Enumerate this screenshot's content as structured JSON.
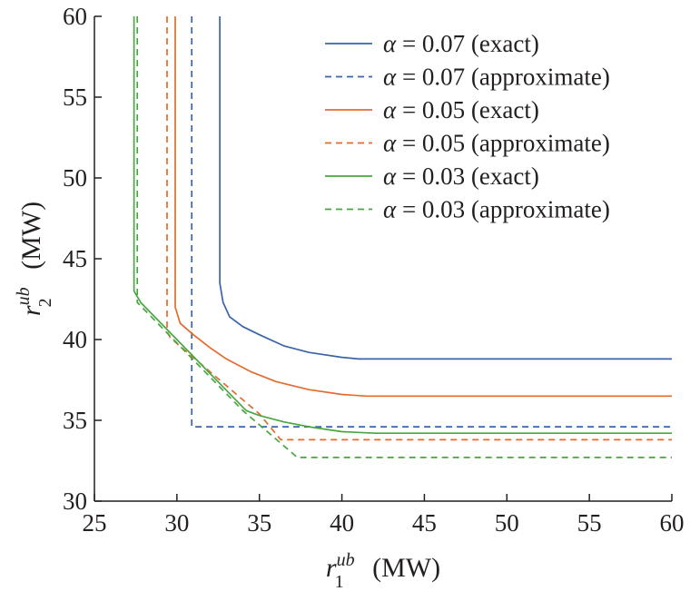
{
  "chart_data": {
    "type": "line",
    "xlabel": {
      "base": "r",
      "sub": "1",
      "sup": "ub",
      "unit": "(MW)"
    },
    "ylabel": {
      "base": "r",
      "sub": "2",
      "sup": "ub",
      "unit": "(MW)"
    },
    "xlim": [
      25,
      60
    ],
    "ylim": [
      30,
      60
    ],
    "xticks": [
      25,
      30,
      35,
      40,
      45,
      50,
      55,
      60
    ],
    "yticks": [
      30,
      35,
      40,
      45,
      50,
      55,
      60
    ],
    "legend_position": "top-right",
    "series": [
      {
        "name": "α = 0.07 (exact)",
        "color": "#3a64a8",
        "dash": "solid",
        "points": [
          [
            32.6,
            60
          ],
          [
            32.6,
            43.5
          ],
          [
            32.8,
            42.3
          ],
          [
            33.2,
            41.4
          ],
          [
            34.0,
            40.8
          ],
          [
            35.0,
            40.3
          ],
          [
            36.5,
            39.6
          ],
          [
            38.0,
            39.2
          ],
          [
            40.0,
            38.9
          ],
          [
            41.0,
            38.8
          ],
          [
            60,
            38.8
          ]
        ]
      },
      {
        "name": "α = 0.07 (approximate)",
        "color": "#3a64a8",
        "dash": "dashed",
        "points": [
          [
            30.9,
            60
          ],
          [
            30.9,
            34.6
          ],
          [
            60,
            34.6
          ]
        ]
      },
      {
        "name": "α = 0.05 (exact)",
        "color": "#e36b2e",
        "dash": "solid",
        "points": [
          [
            29.9,
            60
          ],
          [
            29.9,
            42.0
          ],
          [
            30.2,
            41.0
          ],
          [
            31.0,
            40.3
          ],
          [
            32.0,
            39.5
          ],
          [
            33.0,
            38.8
          ],
          [
            34.5,
            38.0
          ],
          [
            36.0,
            37.4
          ],
          [
            38.0,
            36.9
          ],
          [
            40.0,
            36.6
          ],
          [
            41.5,
            36.5
          ],
          [
            60,
            36.5
          ]
        ]
      },
      {
        "name": "α = 0.05 (approximate)",
        "color": "#e36b2e",
        "dash": "dashed",
        "points": [
          [
            29.4,
            60
          ],
          [
            29.4,
            40.5
          ],
          [
            29.6,
            40.1
          ],
          [
            35.0,
            35.4
          ],
          [
            36.3,
            33.8
          ],
          [
            60,
            33.8
          ]
        ]
      },
      {
        "name": "α = 0.03 (exact)",
        "color": "#4aa543",
        "dash": "solid",
        "points": [
          [
            27.4,
            60
          ],
          [
            27.4,
            43.0
          ],
          [
            27.8,
            42.3
          ],
          [
            34.2,
            35.6
          ],
          [
            35.0,
            35.3
          ],
          [
            36.5,
            34.9
          ],
          [
            38.0,
            34.6
          ],
          [
            40.0,
            34.3
          ],
          [
            42.0,
            34.2
          ],
          [
            60,
            34.2
          ]
        ]
      },
      {
        "name": "α = 0.03 (approximate)",
        "color": "#4aa543",
        "dash": "dashed",
        "points": [
          [
            27.6,
            60
          ],
          [
            27.6,
            42.3
          ],
          [
            34.0,
            35.6
          ],
          [
            37.3,
            32.7
          ],
          [
            60,
            32.7
          ]
        ]
      }
    ]
  }
}
